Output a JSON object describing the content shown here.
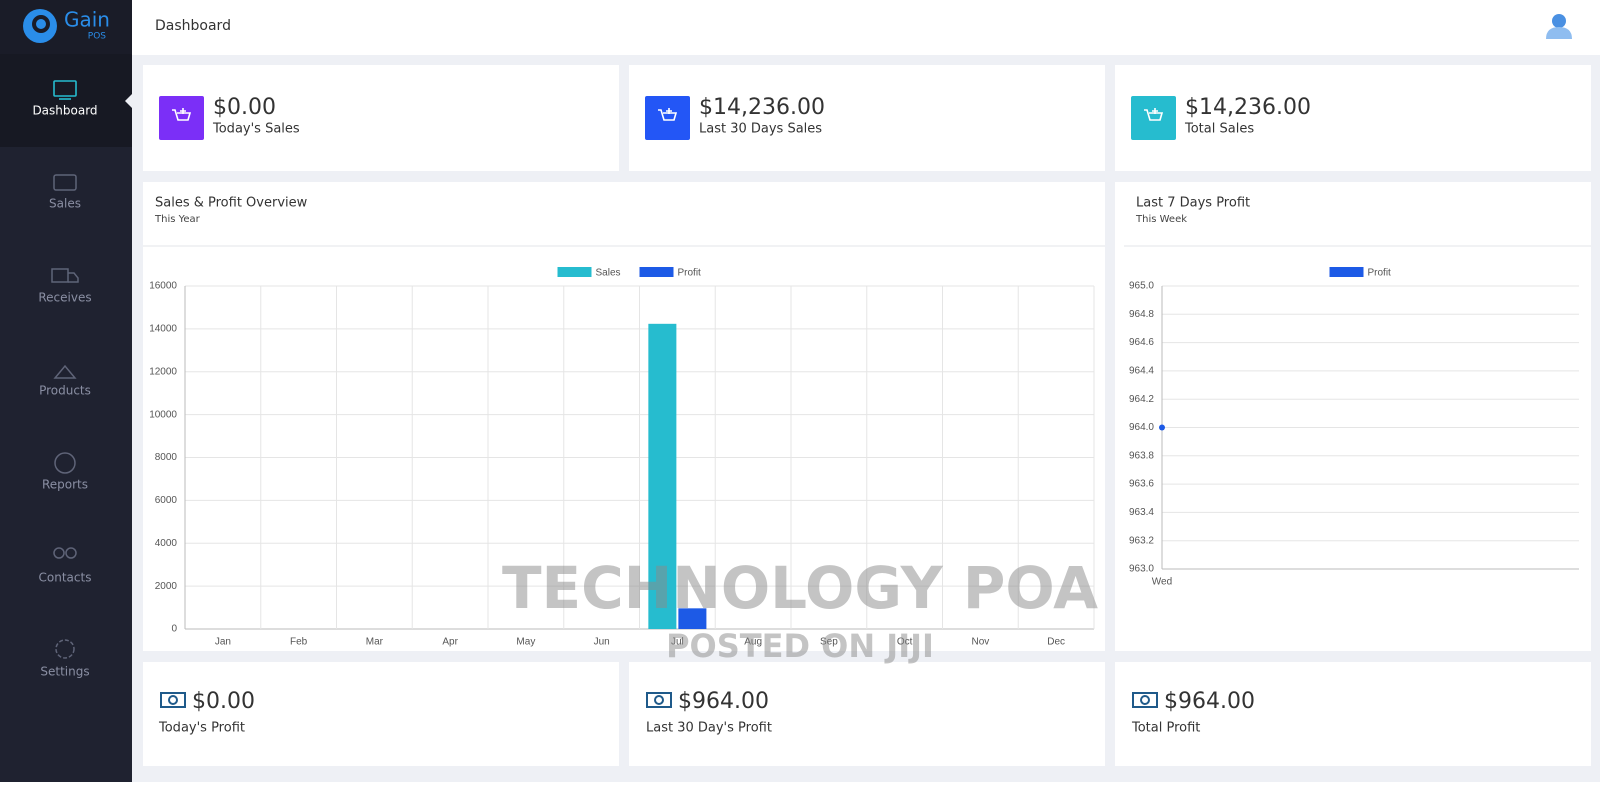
{
  "app": {
    "brand": "Gain",
    "brand_sub": "POS"
  },
  "header": {
    "title": "Dashboard"
  },
  "nav": [
    "Dashboard",
    "Sales",
    "Receives",
    "Products",
    "Reports",
    "Contacts",
    "Settings"
  ],
  "sales_cards": [
    {
      "value": "$0.00",
      "label": "Today's Sales"
    },
    {
      "value": "$14,236.00",
      "label": "Last 30 Days Sales"
    },
    {
      "value": "$14,236.00",
      "label": "Total Sales"
    }
  ],
  "profit_cards": [
    {
      "value": "$0.00",
      "label": "Today's Profit"
    },
    {
      "value": "$964.00",
      "label": "Last 30 Day's Profit"
    },
    {
      "value": "$964.00",
      "label": "Total Profit"
    }
  ],
  "chart_data": [
    {
      "type": "bar",
      "title": "Sales & Profit Overview",
      "subtitle": "This Year",
      "categories": [
        "Jan",
        "Feb",
        "Mar",
        "Apr",
        "May",
        "Jun",
        "Jul",
        "Aug",
        "Sep",
        "Oct",
        "Nov",
        "Dec"
      ],
      "series": [
        {
          "name": "Sales",
          "color": "#26bccf",
          "values": [
            0,
            0,
            0,
            0,
            0,
            0,
            14236,
            0,
            0,
            0,
            0,
            0
          ]
        },
        {
          "name": "Profit",
          "color": "#1d5ae6",
          "values": [
            0,
            0,
            0,
            0,
            0,
            0,
            964,
            0,
            0,
            0,
            0,
            0
          ]
        }
      ],
      "ylim": [
        0,
        16000
      ],
      "yticks": [
        0,
        2000,
        4000,
        6000,
        8000,
        10000,
        12000,
        14000,
        16000
      ],
      "grid": true,
      "legend": "top"
    },
    {
      "type": "line",
      "title": "Last 7 Days Profit",
      "subtitle": "This Week",
      "categories": [
        "Wed"
      ],
      "series": [
        {
          "name": "Profit",
          "color": "#1d5ae6",
          "values": [
            964
          ]
        }
      ],
      "ylim": [
        963,
        965
      ],
      "yticks": [
        {
          "value": 963,
          "label": "963.0"
        },
        963.2,
        963.4,
        963.6,
        963.8,
        {
          "value": 964,
          "label": "964.0"
        },
        964.2,
        964.4,
        964.6,
        964.8,
        {
          "value": 965,
          "label": "965.0"
        }
      ],
      "grid": true,
      "legend": "top"
    }
  ],
  "watermark": [
    "TECHNOLOGY POA",
    "POSTED ON JIJI"
  ]
}
